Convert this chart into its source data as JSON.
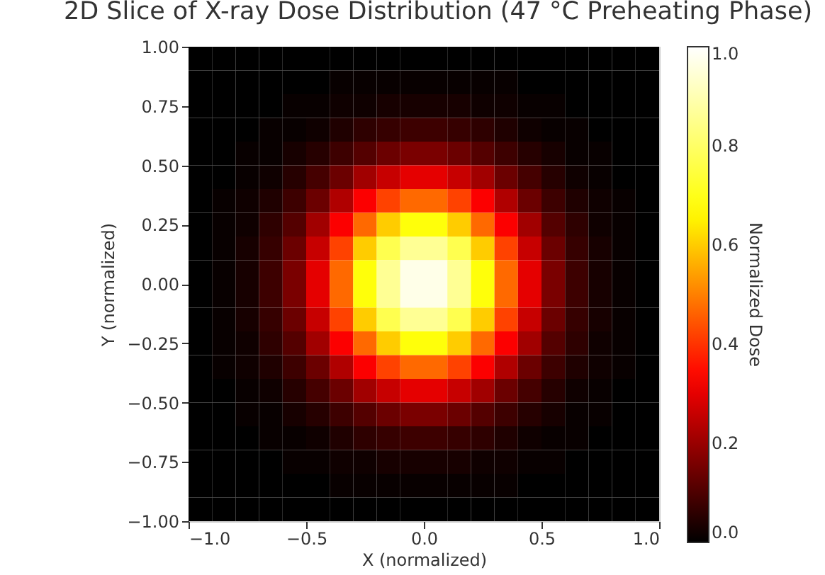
{
  "chart_data": {
    "type": "heatmap",
    "title": "2D Slice of X-ray Dose Distribution (47 °C Preheating Phase)",
    "xlabel": "X (normalized)",
    "ylabel": "Y (normalized)",
    "clabel": "Normalized Dose",
    "x": [
      -0.95,
      -0.85,
      -0.75,
      -0.65,
      -0.55,
      -0.45,
      -0.35,
      -0.25,
      -0.15,
      -0.05,
      0.05,
      0.15,
      0.25,
      0.35,
      0.45,
      0.55,
      0.65,
      0.75,
      0.85,
      0.95
    ],
    "y": [
      0.95,
      0.85,
      0.75,
      0.65,
      0.55,
      0.45,
      0.35,
      0.25,
      0.15,
      0.05,
      -0.05,
      -0.15,
      -0.25,
      -0.35,
      -0.45,
      -0.55,
      -0.65,
      -0.75,
      -0.85,
      -0.95
    ],
    "xlim": [
      -1,
      1
    ],
    "ylim": [
      -1,
      1
    ],
    "xticks": [
      {
        "value": -1,
        "label": "−1.0"
      },
      {
        "value": -0.5,
        "label": "−0.5"
      },
      {
        "value": 0,
        "label": "0.0"
      },
      {
        "value": 0.5,
        "label": "0.5"
      },
      {
        "value": 1,
        "label": "1.0"
      }
    ],
    "yticks": [
      {
        "value": -1,
        "label": "−1.00"
      },
      {
        "value": -0.75,
        "label": "−0.75"
      },
      {
        "value": -0.5,
        "label": "−0.50"
      },
      {
        "value": -0.25,
        "label": "−0.25"
      },
      {
        "value": 0,
        "label": "0.00"
      },
      {
        "value": 0.25,
        "label": "0.25"
      },
      {
        "value": 0.5,
        "label": "0.50"
      },
      {
        "value": 0.75,
        "label": "0.75"
      },
      {
        "value": 1,
        "label": "1.00"
      }
    ],
    "clim": [
      0,
      1
    ],
    "cticks": [
      {
        "value": 0,
        "label": "0.0"
      },
      {
        "value": 0.2,
        "label": "0.2"
      },
      {
        "value": 0.4,
        "label": "0.4"
      },
      {
        "value": 0.6,
        "label": "0.6"
      },
      {
        "value": 0.8,
        "label": "0.8"
      },
      {
        "value": 1,
        "label": "1.0"
      }
    ],
    "colors": [
      "#000000",
      "#ff0000",
      "#ffff00",
      "#ffffff"
    ],
    "cells": [
      [
        0,
        0,
        0,
        0,
        0,
        0,
        0,
        0,
        0,
        0,
        0,
        0,
        0,
        0,
        0,
        0,
        0,
        0,
        0,
        0
      ],
      [
        0,
        0,
        0,
        0,
        0,
        0,
        0.01,
        0.01,
        0.01,
        0.01,
        0.01,
        0.01,
        0.01,
        0.01,
        0,
        0,
        0,
        0,
        0,
        0
      ],
      [
        0,
        0,
        0,
        0,
        0.01,
        0.01,
        0.02,
        0.02,
        0.03,
        0.03,
        0.03,
        0.03,
        0.02,
        0.02,
        0.01,
        0.01,
        0,
        0,
        0,
        0
      ],
      [
        0,
        0,
        0,
        0.01,
        0.01,
        0.02,
        0.04,
        0.06,
        0.07,
        0.08,
        0.08,
        0.07,
        0.06,
        0.04,
        0.02,
        0.01,
        0.01,
        0,
        0,
        0
      ],
      [
        0,
        0,
        0.01,
        0.01,
        0.03,
        0.05,
        0.08,
        0.11,
        0.14,
        0.16,
        0.16,
        0.14,
        0.11,
        0.08,
        0.05,
        0.03,
        0.01,
        0.01,
        0,
        0
      ],
      [
        0,
        0,
        0.01,
        0.02,
        0.05,
        0.09,
        0.14,
        0.21,
        0.26,
        0.3,
        0.3,
        0.26,
        0.21,
        0.14,
        0.09,
        0.05,
        0.02,
        0.01,
        0,
        0
      ],
      [
        0,
        0.01,
        0.02,
        0.04,
        0.08,
        0.14,
        0.23,
        0.33,
        0.42,
        0.47,
        0.47,
        0.42,
        0.33,
        0.23,
        0.14,
        0.08,
        0.04,
        0.02,
        0.01,
        0
      ],
      [
        0,
        0.01,
        0.02,
        0.06,
        0.11,
        0.21,
        0.33,
        0.47,
        0.6,
        0.68,
        0.68,
        0.6,
        0.47,
        0.33,
        0.21,
        0.11,
        0.06,
        0.02,
        0.01,
        0
      ],
      [
        0,
        0.01,
        0.03,
        0.07,
        0.14,
        0.26,
        0.42,
        0.6,
        0.77,
        0.86,
        0.86,
        0.77,
        0.6,
        0.42,
        0.26,
        0.14,
        0.07,
        0.03,
        0.01,
        0
      ],
      [
        0,
        0.01,
        0.03,
        0.08,
        0.16,
        0.3,
        0.47,
        0.68,
        0.86,
        0.97,
        0.97,
        0.86,
        0.68,
        0.47,
        0.3,
        0.16,
        0.08,
        0.03,
        0.01,
        0
      ],
      [
        0,
        0.01,
        0.03,
        0.08,
        0.16,
        0.3,
        0.47,
        0.68,
        0.86,
        0.97,
        0.97,
        0.86,
        0.68,
        0.47,
        0.3,
        0.16,
        0.08,
        0.03,
        0.01,
        0
      ],
      [
        0,
        0.01,
        0.03,
        0.07,
        0.14,
        0.26,
        0.42,
        0.6,
        0.77,
        0.86,
        0.86,
        0.77,
        0.6,
        0.42,
        0.26,
        0.14,
        0.07,
        0.03,
        0.01,
        0
      ],
      [
        0,
        0.01,
        0.02,
        0.06,
        0.11,
        0.21,
        0.33,
        0.47,
        0.6,
        0.68,
        0.68,
        0.6,
        0.47,
        0.33,
        0.21,
        0.11,
        0.06,
        0.02,
        0.01,
        0
      ],
      [
        0,
        0.01,
        0.02,
        0.04,
        0.08,
        0.14,
        0.23,
        0.33,
        0.42,
        0.47,
        0.47,
        0.42,
        0.33,
        0.23,
        0.14,
        0.08,
        0.04,
        0.02,
        0.01,
        0
      ],
      [
        0,
        0,
        0.01,
        0.02,
        0.05,
        0.09,
        0.14,
        0.21,
        0.26,
        0.3,
        0.3,
        0.26,
        0.21,
        0.14,
        0.09,
        0.05,
        0.02,
        0.01,
        0,
        0
      ],
      [
        0,
        0,
        0.01,
        0.01,
        0.03,
        0.05,
        0.08,
        0.11,
        0.14,
        0.16,
        0.16,
        0.14,
        0.11,
        0.08,
        0.05,
        0.03,
        0.01,
        0.01,
        0,
        0
      ],
      [
        0,
        0,
        0,
        0.01,
        0.01,
        0.02,
        0.04,
        0.06,
        0.07,
        0.08,
        0.08,
        0.07,
        0.06,
        0.04,
        0.02,
        0.01,
        0.01,
        0,
        0,
        0
      ],
      [
        0,
        0,
        0,
        0,
        0.01,
        0.01,
        0.02,
        0.02,
        0.03,
        0.03,
        0.03,
        0.03,
        0.02,
        0.02,
        0.01,
        0.01,
        0,
        0,
        0,
        0
      ],
      [
        0,
        0,
        0,
        0,
        0,
        0,
        0.01,
        0.01,
        0.01,
        0.01,
        0.01,
        0.01,
        0.01,
        0.01,
        0,
        0,
        0,
        0,
        0,
        0
      ],
      [
        0,
        0,
        0,
        0,
        0,
        0,
        0,
        0,
        0,
        0,
        0,
        0,
        0,
        0,
        0,
        0,
        0,
        0,
        0,
        0
      ]
    ]
  }
}
